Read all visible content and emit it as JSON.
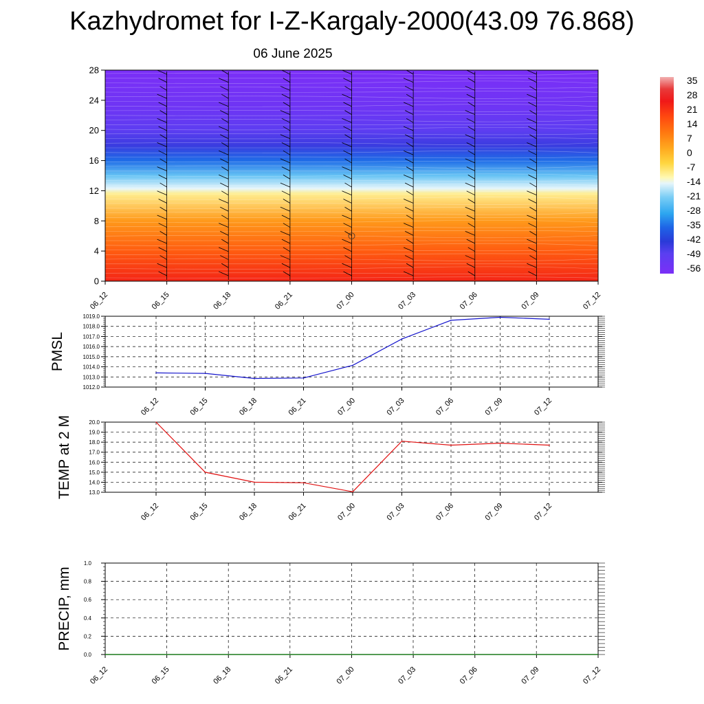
{
  "title": "Kazhydromet for I-Z-Kargaly-2000(43.09 76.868)",
  "subtitle": "06 June 2025",
  "chart_data": [
    {
      "type": "heatmap",
      "name": "vertical-profile",
      "x_labels": [
        "06_12",
        "06_15",
        "06_18",
        "06_21",
        "07_00",
        "07_03",
        "07_06",
        "07_09",
        "07_12"
      ],
      "y_ticks": [
        0,
        4,
        8,
        12,
        16,
        20,
        24,
        28
      ],
      "ylim": [
        0,
        28
      ],
      "colorbar_labels": [
        "35",
        "28",
        "21",
        "14",
        "7",
        "0",
        "-7",
        "-14",
        "-21",
        "-28",
        "-35",
        "-42",
        "-49",
        "-56"
      ],
      "colorbar_range": [
        -60,
        38
      ],
      "color_stops": [
        {
          "v": -60,
          "c": "#7b2ff7"
        },
        {
          "v": -50,
          "c": "#5a3ff0"
        },
        {
          "v": -44,
          "c": "#2a3ad8"
        },
        {
          "v": -37,
          "c": "#1e64e6"
        },
        {
          "v": -30,
          "c": "#2da6f0"
        },
        {
          "v": -22,
          "c": "#79cdf5"
        },
        {
          "v": -15,
          "c": "#e6f6fb"
        },
        {
          "v": -12,
          "c": "#fff8b0"
        },
        {
          "v": -5,
          "c": "#ffd640"
        },
        {
          "v": 2,
          "c": "#ffac20"
        },
        {
          "v": 10,
          "c": "#ff7a10"
        },
        {
          "v": 18,
          "c": "#ff4a10"
        },
        {
          "v": 26,
          "c": "#f01818"
        },
        {
          "v": 32,
          "c": "#e83a3a"
        },
        {
          "v": 38,
          "c": "#f2b0b0"
        }
      ],
      "profile": [
        {
          "y": 0,
          "t": 24
        },
        {
          "y": 4,
          "t": 15
        },
        {
          "y": 8,
          "t": 5
        },
        {
          "y": 11.6,
          "t": -10
        },
        {
          "y": 12.3,
          "t": -15
        },
        {
          "y": 14,
          "t": -24
        },
        {
          "y": 16,
          "t": -36
        },
        {
          "y": 18,
          "t": -46
        },
        {
          "y": 20,
          "t": -51
        },
        {
          "y": 23,
          "t": -56
        },
        {
          "y": 28,
          "t": -60
        }
      ]
    },
    {
      "type": "line",
      "name": "pmsl",
      "ylabel": "PMSL",
      "categories": [
        "06_12",
        "06_15",
        "06_18",
        "06_21",
        "07_00",
        "07_03",
        "07_06",
        "07_09",
        "07_12"
      ],
      "values": [
        1013.4,
        1013.35,
        1012.85,
        1012.9,
        1014.15,
        1016.75,
        1018.6,
        1018.9,
        1018.7
      ],
      "ylim": [
        1012.0,
        1019.0
      ],
      "y_ticks": [
        "1012.0",
        "1013.0",
        "1014.0",
        "1015.0",
        "1016.0",
        "1017.0",
        "1018.0",
        "1019.0"
      ],
      "color": "#1515cc"
    },
    {
      "type": "line",
      "name": "temp",
      "ylabel": "TEMP at 2 M",
      "categories": [
        "06_12",
        "06_15",
        "06_18",
        "06_21",
        "07_00",
        "07_03",
        "07_06",
        "07_09",
        "07_12"
      ],
      "values": [
        20.0,
        15.0,
        14.0,
        13.95,
        13.05,
        18.1,
        17.7,
        17.9,
        17.7
      ],
      "ylim": [
        13.0,
        20.0
      ],
      "y_ticks": [
        "13.0",
        "14.0",
        "15.0",
        "16.0",
        "17.0",
        "18.0",
        "19.0",
        "20.0"
      ],
      "color": "#e01010"
    },
    {
      "type": "line",
      "name": "precip",
      "ylabel": "PRECIP, mm",
      "categories": [
        "06_12",
        "06_15",
        "06_18",
        "06_21",
        "07_00",
        "07_03",
        "07_06",
        "07_09",
        "07_12"
      ],
      "values": [
        0,
        0,
        0,
        0,
        0,
        0,
        0,
        0,
        0
      ],
      "ylim": [
        0.0,
        1.0
      ],
      "y_ticks": [
        "0.0",
        "0.2",
        "0.4",
        "0.6",
        "0.8",
        "1.0"
      ],
      "color": "#1a7a1a"
    }
  ]
}
